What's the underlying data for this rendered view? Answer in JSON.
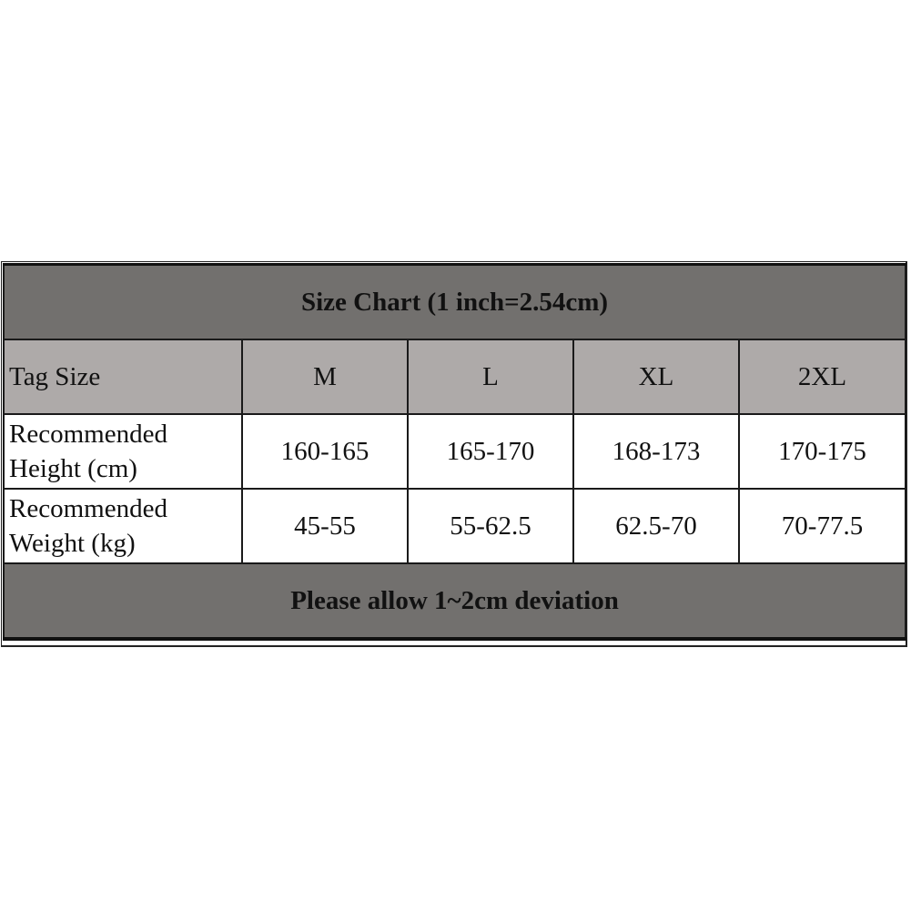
{
  "title": "Size Chart (1 inch=2.54cm)",
  "header": {
    "label": "Tag Size",
    "sizes": [
      "M",
      "L",
      "XL",
      "2XL"
    ]
  },
  "rows": [
    {
      "label_line1": "Recommended",
      "label_line2": "Height (cm)",
      "values": [
        "160-165",
        "165-170",
        "168-173",
        "170-175"
      ]
    },
    {
      "label_line1": "Recommended",
      "label_line2": "Weight (kg)",
      "values": [
        "45-55",
        "55-62.5",
        "62.5-70",
        "70-77.5"
      ]
    }
  ],
  "footer": "Please allow 1~2cm deviation",
  "colors": {
    "title_bg": "#72706e",
    "header_bg": "#aeaaa9",
    "border": "#1a1a1a"
  }
}
